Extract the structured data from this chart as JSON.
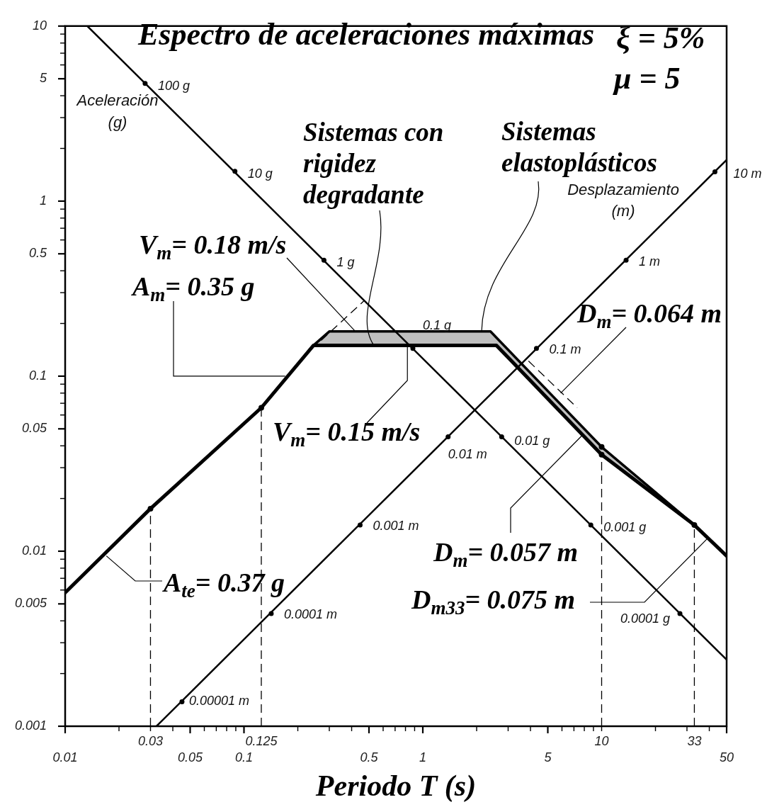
{
  "chart_data": {
    "type": "line",
    "title": "Espectro de aceleraciones máximas",
    "xlabel": "Periodo T (s)",
    "log": "xy",
    "xlim": [
      0.01,
      50
    ],
    "ylim": [
      0.001,
      10
    ],
    "xticks": [
      0.01,
      {
        "value": 0.02,
        "label": null
      },
      {
        "value": 0.03,
        "label": null
      },
      {
        "value": 0.04,
        "label": null
      },
      0.05,
      {
        "value": 0.06,
        "label": null
      },
      {
        "value": 0.07,
        "label": null
      },
      {
        "value": 0.08,
        "label": null
      },
      {
        "value": 0.09,
        "label": null
      },
      0.1,
      {
        "value": 0.2,
        "label": null
      },
      {
        "value": 0.3,
        "label": null
      },
      {
        "value": 0.4,
        "label": null
      },
      0.5,
      {
        "value": 0.6,
        "label": null
      },
      {
        "value": 0.7,
        "label": null
      },
      {
        "value": 0.8,
        "label": null
      },
      {
        "value": 0.9,
        "label": null
      },
      1,
      {
        "value": 2,
        "label": null
      },
      {
        "value": 3,
        "label": null
      },
      {
        "value": 4,
        "label": null
      },
      5,
      {
        "value": 6,
        "label": null
      },
      {
        "value": 7,
        "label": null
      },
      {
        "value": 8,
        "label": null
      },
      {
        "value": 9,
        "label": null
      },
      {
        "value": 10,
        "label": null
      },
      {
        "value": 20,
        "label": null
      },
      {
        "value": 30,
        "label": null
      },
      {
        "value": 40,
        "label": null
      },
      50
    ],
    "yticks": [
      0.001,
      {
        "value": 0.002,
        "label": null
      },
      {
        "value": 0.003,
        "label": null
      },
      {
        "value": 0.004,
        "label": null
      },
      0.005,
      {
        "value": 0.006,
        "label": null
      },
      {
        "value": 0.007,
        "label": null
      },
      {
        "value": 0.008,
        "label": null
      },
      {
        "value": 0.009,
        "label": null
      },
      0.01,
      {
        "value": 0.02,
        "label": null
      },
      {
        "value": 0.03,
        "label": null
      },
      {
        "value": 0.04,
        "label": null
      },
      0.05,
      {
        "value": 0.06,
        "label": null
      },
      {
        "value": 0.07,
        "label": null
      },
      {
        "value": 0.08,
        "label": null
      },
      {
        "value": 0.09,
        "label": null
      },
      0.1,
      {
        "value": 0.2,
        "label": null
      },
      {
        "value": 0.3,
        "label": null
      },
      {
        "value": 0.4,
        "label": null
      },
      0.5,
      {
        "value": 0.6,
        "label": null
      },
      {
        "value": 0.7,
        "label": null
      },
      {
        "value": 0.8,
        "label": null
      },
      {
        "value": 0.9,
        "label": null
      },
      1,
      {
        "value": 2,
        "label": null
      },
      {
        "value": 3,
        "label": null
      },
      {
        "value": 4,
        "label": null
      },
      5,
      {
        "value": 6,
        "label": null
      },
      {
        "value": 7,
        "label": null
      },
      {
        "value": 8,
        "label": null
      },
      {
        "value": 9,
        "label": null
      },
      10
    ],
    "series": [
      {
        "x": [
          0.0133,
          50
        ],
        "values": [
          10,
          0.0024
        ],
        "color": "#000000"
      },
      {
        "x": [
          0.0324,
          50
        ],
        "values": [
          0.001,
          1.72
        ],
        "color": "#000000"
      },
      {
        "name": "Sistemas con rigidez degradante",
        "x": [
          0.01,
          0.03,
          0.125,
          0.245,
          2.58,
          10,
          33,
          50
        ],
        "values": [
          0.0058,
          0.0175,
          0.066,
          0.15,
          0.15,
          0.0356,
          0.0141,
          0.0094
        ],
        "color": "#000000"
      },
      {
        "name": "Sistemas elastoplásticos",
        "x": [
          0.245,
          0.3,
          2.39,
          2.58,
          10,
          33
        ],
        "values": [
          0.15,
          0.18,
          0.18,
          0.166,
          0.0394,
          0.0141
        ],
        "lower": [
          0.15,
          0.15,
          0.15,
          0.15,
          0.0356,
          0.0141
        ],
        "upper": [
          0.15,
          0.18,
          0.18,
          0.166,
          0.0394,
          0.0141
        ],
        "color": "#000000"
      },
      {
        "x": [
          0.27,
          0.47
        ],
        "values": [
          0.16,
          0.27
        ],
        "color": "#000000",
        "line_style": "dashed"
      },
      {
        "x": [
          3.9,
          7.3
        ],
        "values": [
          0.122,
          0.066
        ],
        "color": "#000000",
        "line_style": "dashed"
      },
      {
        "x": [
          0.03,
          0.03
        ],
        "values": [
          0.001,
          0.0175
        ],
        "color": "#000000",
        "line_style": "dashed"
      },
      {
        "x": [
          0.125,
          0.125
        ],
        "values": [
          0.001,
          0.066
        ],
        "color": "#000000",
        "line_style": "dashed"
      },
      {
        "x": [
          10,
          10
        ],
        "values": [
          0.001,
          0.0356
        ],
        "color": "#000000",
        "line_style": "dashed"
      },
      {
        "x": [
          33,
          33
        ],
        "values": [
          0.001,
          0.0141
        ],
        "color": "#000000",
        "line_style": "dashed"
      },
      {
        "type": "scatter",
        "x": [
          0.03,
          0.125,
          10,
          10,
          33
        ],
        "values": [
          0.0175,
          0.066,
          0.0356,
          0.0394,
          0.0141
        ],
        "color": "#000000",
        "marker": "circle"
      }
    ],
    "annotations": [
      "ξ = 5%",
      "μ = 5",
      "Aceleración (g)",
      "Desplazamiento (m)",
      {
        "text": "100 g",
        "x": 0.028,
        "y": 4.7
      },
      {
        "text": "10 g",
        "x": 0.089,
        "y": 1.48
      },
      {
        "text": "1 g",
        "x": 0.28,
        "y": 0.46
      },
      {
        "text": "0.1 g",
        "x": 0.88,
        "y": 0.144
      },
      {
        "text": "0.01 g",
        "x": 2.76,
        "y": 0.045
      },
      {
        "text": "0.001 g",
        "x": 8.7,
        "y": 0.0141
      },
      {
        "text": "0.0001 g",
        "x": 27.4,
        "y": 0.0044
      },
      {
        "text": "0.00001 m",
        "x": 0.045,
        "y": 0.00138
      },
      {
        "text": "0.0001 m",
        "x": 0.142,
        "y": 0.0044
      },
      {
        "text": "0.001 m",
        "x": 0.446,
        "y": 0.0141
      },
      {
        "text": "0.01 m",
        "x": 1.385,
        "y": 0.045
      },
      {
        "text": "0.1 m",
        "x": 4.32,
        "y": 0.144
      },
      {
        "text": "1 m",
        "x": 13.7,
        "y": 0.46
      },
      {
        "text": "10 m",
        "x": 43,
        "y": 1.47
      },
      {
        "text": "V$_{m}$= 0.18 m/s",
        "x": 0.42,
        "y": 0.18
      },
      {
        "text": "A$_{m}$= 0.35 g",
        "x": 0.17,
        "y": 0.1
      },
      {
        "text": "V$_{m}$= 0.15 m/s",
        "x": 0.82,
        "y": 0.15
      },
      {
        "text": "D$_{m}$= 0.064 m",
        "x": 5.9,
        "y": 0.08
      },
      {
        "text": "D$_{m}$= 0.057 m",
        "x": 7.8,
        "y": 0.046
      },
      {
        "text": "D$_{m33}$= 0.075 m",
        "x": 39,
        "y": 0.0118
      },
      {
        "text": "A$_{te}$= 0.37 g",
        "x": 0.017,
        "y": 0.0094
      },
      {
        "text": "0.03",
        "x": 0.03,
        "y": 0.001
      },
      {
        "text": "0.125",
        "x": 0.125,
        "y": 0.001
      },
      {
        "text": "10",
        "x": 10,
        "y": 0.001
      },
      {
        "text": "33",
        "x": 33,
        "y": 0.001
      }
    ]
  }
}
